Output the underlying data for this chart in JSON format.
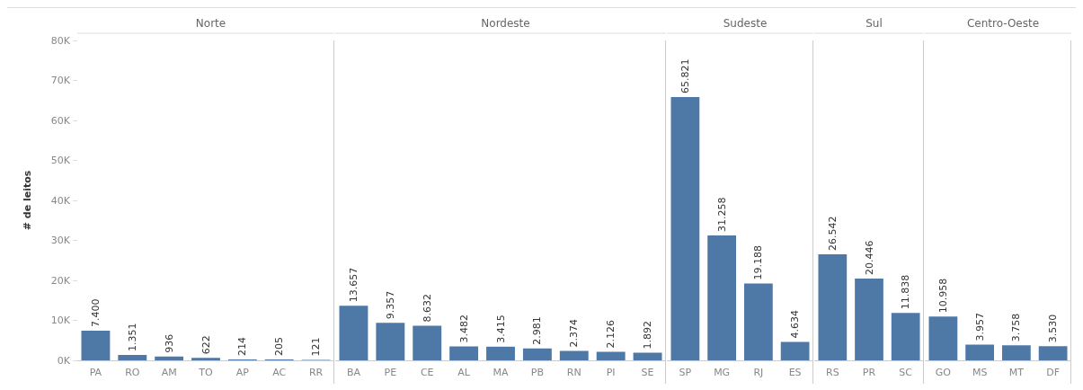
{
  "chart_data": [
    {
      "type": "bar",
      "title": "Norte",
      "ylabel": "# de leitos",
      "categories": [
        "PA",
        "RO",
        "AM",
        "TO",
        "AP",
        "AC",
        "RR"
      ],
      "values": [
        7400,
        1351,
        936,
        622,
        214,
        205,
        121
      ],
      "value_labels": [
        "7.400",
        "1.351",
        "936",
        "622",
        "214",
        "205",
        "121"
      ],
      "color": "#4e79a7",
      "ylim": [
        0,
        80000
      ],
      "yticks": [
        {
          "value": 0,
          "label": "0K"
        },
        {
          "value": 10000,
          "label": "10K"
        },
        {
          "value": 20000,
          "label": "20K"
        },
        {
          "value": 30000,
          "label": "30K"
        },
        {
          "value": 40000,
          "label": "40K"
        },
        {
          "value": 50000,
          "label": "50K"
        },
        {
          "value": 60000,
          "label": "60K"
        },
        {
          "value": 70000,
          "label": "70K"
        },
        {
          "value": 80000,
          "label": "80K"
        }
      ]
    },
    {
      "type": "bar",
      "title": "Nordeste",
      "categories": [
        "BA",
        "PE",
        "CE",
        "AL",
        "MA",
        "PB",
        "RN",
        "PI",
        "SE"
      ],
      "values": [
        13657,
        9357,
        8632,
        3482,
        3415,
        2981,
        2374,
        2126,
        1892
      ],
      "value_labels": [
        "13.657",
        "9.357",
        "8.632",
        "3.482",
        "3.415",
        "2.981",
        "2.374",
        "2.126",
        "1.892"
      ],
      "color": "#4e79a7",
      "ylim": [
        0,
        80000
      ],
      "tick_labels": "x"
    },
    {
      "type": "bar",
      "title": "Sudeste",
      "categories": [
        "SP",
        "MG",
        "RJ",
        "ES"
      ],
      "values": [
        65821,
        31258,
        19188,
        4634
      ],
      "value_labels": [
        "65.821",
        "31.258",
        "19.188",
        "4.634"
      ],
      "color": "#4e79a7",
      "ylim": [
        0,
        80000
      ],
      "tick_labels": "x"
    },
    {
      "type": "bar",
      "title": "Sul",
      "categories": [
        "RS",
        "PR",
        "SC"
      ],
      "values": [
        26542,
        20446,
        11838
      ],
      "value_labels": [
        "26.542",
        "20.446",
        "11.838"
      ],
      "color": "#4e79a7",
      "ylim": [
        0,
        80000
      ],
      "tick_labels": "x"
    },
    {
      "type": "bar",
      "title": "Centro-Oeste",
      "categories": [
        "GO",
        "MS",
        "MT",
        "DF"
      ],
      "values": [
        10958,
        3957,
        3758,
        3530
      ],
      "value_labels": [
        "10.958",
        "3.957",
        "3.758",
        "3.530"
      ],
      "color": "#4e79a7",
      "ylim": [
        0,
        80000
      ],
      "tick_labels": "x"
    }
  ]
}
